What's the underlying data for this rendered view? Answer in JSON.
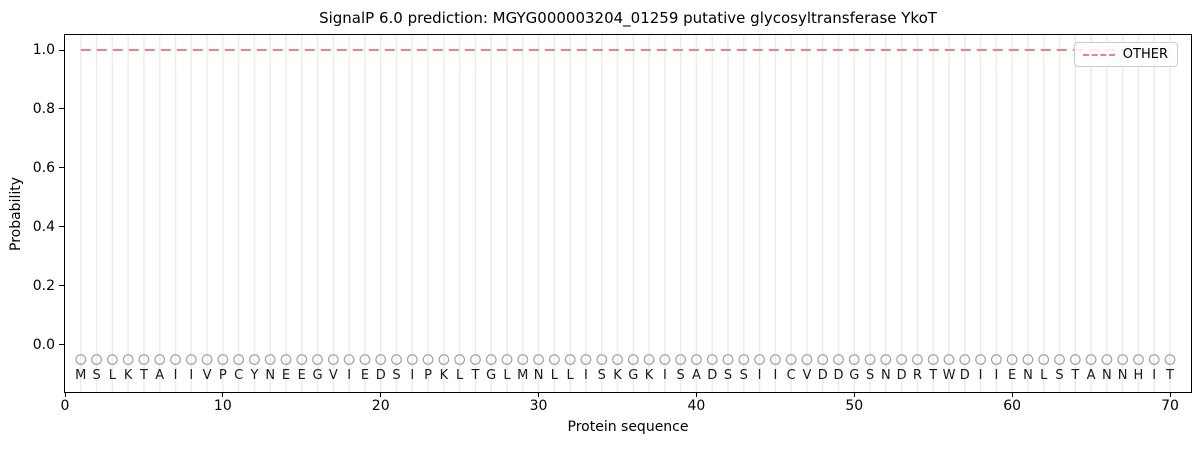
{
  "chart_data": {
    "type": "line",
    "title": "SignalP 6.0 prediction: MGYG000003204_01259 putative glycosyltransferase YkoT",
    "xlabel": "Protein sequence",
    "ylabel": "Probability",
    "xlim": [
      0,
      71.33
    ],
    "ylim": [
      -0.16,
      1.051
    ],
    "x_ticks": [
      0,
      10,
      20,
      30,
      40,
      50,
      60,
      70
    ],
    "y_ticks": [
      0.0,
      0.2,
      0.4,
      0.6,
      0.8,
      1.0
    ],
    "grid": {
      "vertical_per_residue": true,
      "horizontal": false,
      "color": "#ececec"
    },
    "legend": {
      "position": "upper-right",
      "entries": [
        {
          "label": "OTHER",
          "color": "#f47f7f",
          "linestyle": "dashed"
        }
      ]
    },
    "series": [
      {
        "name": "OTHER",
        "linestyle": "dashed",
        "color": "#f47f7f",
        "x_start": 1,
        "x_end": 70,
        "constant_value": 1.0
      }
    ],
    "sequence": "MSLKTAIIVPCYNEEGVIEDSIPKLTGLMNLLISKGKISADSSIICVDDGSNDRTWDIIENLSTANNHIT",
    "sequence_markers": {
      "shape": "open-circle",
      "y": -0.05,
      "color": "#a3a3a3"
    },
    "spine_color": "#000000",
    "background": "#ffffff"
  }
}
